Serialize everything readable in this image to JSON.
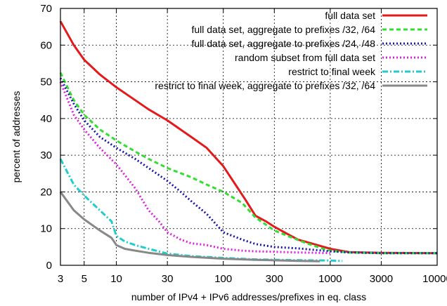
{
  "chart_data": {
    "type": "line",
    "title": "",
    "xlabel": "number of IPv4 + IPv6 addresses/prefixes in eq. class",
    "ylabel": "percent of addresses",
    "x_scale": "log",
    "xlim": [
      3,
      10000
    ],
    "ylim": [
      0,
      70
    ],
    "x_ticks": [
      3,
      5,
      10,
      30,
      100,
      300,
      1000,
      3000,
      10000
    ],
    "x_tick_labels": [
      "3",
      "5",
      "10",
      "30",
      "100",
      "300",
      "1000",
      "3000",
      "10000"
    ],
    "y_ticks": [
      0,
      10,
      20,
      30,
      40,
      50,
      60,
      70
    ],
    "y_tick_labels": [
      "0",
      "10",
      "20",
      "30",
      "40",
      "50",
      "60",
      "70"
    ],
    "grid": true,
    "legend_position": "top-right",
    "series": [
      {
        "name": "full data set",
        "color": "#e31a1c",
        "dash": "solid",
        "points": [
          [
            3,
            66.5
          ],
          [
            4,
            60
          ],
          [
            5,
            56
          ],
          [
            7,
            52
          ],
          [
            10,
            48.5
          ],
          [
            15,
            45
          ],
          [
            20,
            42.5
          ],
          [
            30,
            39.5
          ],
          [
            50,
            35
          ],
          [
            70,
            32
          ],
          [
            100,
            27
          ],
          [
            130,
            22
          ],
          [
            160,
            18
          ],
          [
            200,
            13.5
          ],
          [
            250,
            12
          ],
          [
            300,
            10.5
          ],
          [
            400,
            8.5
          ],
          [
            500,
            7
          ],
          [
            700,
            5.8
          ],
          [
            1000,
            4.5
          ],
          [
            1500,
            3.6
          ],
          [
            3000,
            3.4
          ],
          [
            10000,
            3.3
          ]
        ]
      },
      {
        "name": "full data set, aggregate to prefixes /32, /64",
        "color": "#33dd33",
        "dash": "dash",
        "points": [
          [
            3,
            52.5
          ],
          [
            4,
            45
          ],
          [
            5,
            41
          ],
          [
            7,
            37
          ],
          [
            10,
            34
          ],
          [
            15,
            31
          ],
          [
            20,
            29
          ],
          [
            30,
            26.5
          ],
          [
            50,
            24
          ],
          [
            70,
            22
          ],
          [
            100,
            20
          ],
          [
            150,
            17
          ],
          [
            200,
            13
          ],
          [
            300,
            9.5
          ],
          [
            400,
            8
          ],
          [
            600,
            6
          ],
          [
            800,
            4.8
          ],
          [
            1000,
            4
          ],
          [
            1500,
            3.5
          ],
          [
            3000,
            3.3
          ],
          [
            10000,
            3.3
          ]
        ]
      },
      {
        "name": "full data set, aggregate to prefixes /24, /48",
        "color": "#1a1aaa",
        "dash": "dot",
        "points": [
          [
            3,
            51
          ],
          [
            4,
            44
          ],
          [
            5,
            39.5
          ],
          [
            7,
            35
          ],
          [
            10,
            32
          ],
          [
            15,
            29
          ],
          [
            20,
            26.5
          ],
          [
            30,
            23
          ],
          [
            40,
            20
          ],
          [
            50,
            17.5
          ],
          [
            70,
            14
          ],
          [
            100,
            9
          ],
          [
            150,
            7
          ],
          [
            200,
            5.8
          ],
          [
            300,
            5
          ],
          [
            500,
            4.6
          ],
          [
            700,
            4.2
          ],
          [
            1000,
            3.8
          ],
          [
            1500,
            3.5
          ],
          [
            3000,
            3.3
          ],
          [
            10000,
            3.3
          ]
        ]
      },
      {
        "name": "random subset from full data set",
        "color": "#e020e0",
        "dash": "dot",
        "points": [
          [
            3,
            50
          ],
          [
            4,
            41
          ],
          [
            5,
            37
          ],
          [
            7,
            32
          ],
          [
            10,
            27.5
          ],
          [
            15,
            21
          ],
          [
            20,
            15
          ],
          [
            25,
            12
          ],
          [
            30,
            9
          ],
          [
            40,
            7
          ],
          [
            50,
            6
          ],
          [
            70,
            5.5
          ],
          [
            100,
            4.5
          ],
          [
            150,
            4
          ],
          [
            200,
            3.8
          ],
          [
            500,
            3.5
          ],
          [
            1000,
            3.3
          ]
        ]
      },
      {
        "name": "restrict to final week",
        "color": "#22cccc",
        "dash": "dashdot",
        "points": [
          [
            3,
            29
          ],
          [
            4,
            22
          ],
          [
            5,
            19
          ],
          [
            7,
            15
          ],
          [
            9,
            12
          ],
          [
            10,
            8
          ],
          [
            12,
            6.5
          ],
          [
            15,
            5.5
          ],
          [
            20,
            4.5
          ],
          [
            30,
            3.2
          ],
          [
            50,
            2.5
          ],
          [
            100,
            2
          ],
          [
            200,
            1.6
          ],
          [
            500,
            1.4
          ],
          [
            1000,
            1.3
          ],
          [
            1300,
            1.2
          ]
        ]
      },
      {
        "name": "restrict to final week, aggregate to prefixes /32, /64",
        "color": "#888888",
        "dash": "solid",
        "points": [
          [
            3,
            20
          ],
          [
            4,
            15
          ],
          [
            5,
            12.5
          ],
          [
            7,
            9.5
          ],
          [
            9,
            7.5
          ],
          [
            10,
            5.5
          ],
          [
            12,
            4.5
          ],
          [
            15,
            4
          ],
          [
            20,
            3.4
          ],
          [
            30,
            2.8
          ],
          [
            50,
            2.3
          ],
          [
            100,
            1.8
          ],
          [
            200,
            1.5
          ],
          [
            500,
            1.2
          ],
          [
            800,
            1.1
          ]
        ]
      }
    ]
  }
}
